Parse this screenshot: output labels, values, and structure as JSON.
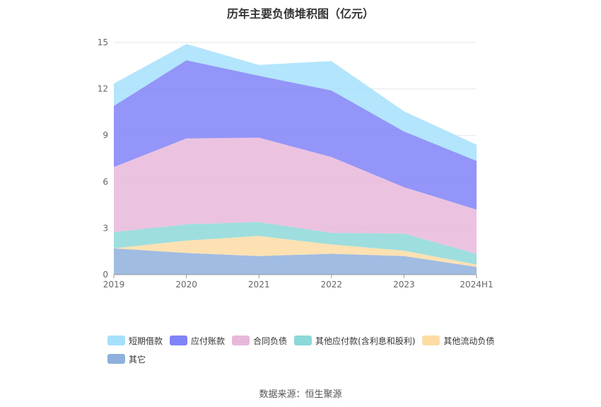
{
  "title": "历年主要负债堆积图（亿元）",
  "source": "数据来源：恒生聚源",
  "chart_data": {
    "type": "area",
    "stacked": true,
    "title": "历年主要负债堆积图（亿元）",
    "categories": [
      "2019",
      "2020",
      "2021",
      "2022",
      "2023",
      "2024H1"
    ],
    "ylim": [
      0,
      15
    ],
    "yticks": [
      "0",
      "3",
      "6",
      "9",
      "12",
      "15"
    ],
    "grid": true,
    "legend_position": "bottom",
    "series": [
      {
        "name": "短期借款",
        "color": "#a6e0fb",
        "values": [
          1.45,
          1.05,
          0.7,
          1.9,
          1.3,
          1.05
        ]
      },
      {
        "name": "应付账款",
        "color": "#8083f7",
        "values": [
          3.95,
          5.05,
          4.0,
          4.3,
          3.6,
          3.15
        ]
      },
      {
        "name": "合同负债",
        "color": "#e8b8da",
        "values": [
          4.2,
          5.55,
          5.45,
          4.9,
          3.0,
          2.85
        ]
      },
      {
        "name": "其他应付款(含利息和股利)",
        "color": "#8dd8d8",
        "values": [
          1.05,
          1.05,
          0.9,
          0.75,
          1.1,
          0.7
        ]
      },
      {
        "name": "其他流动负债",
        "color": "#fddca4",
        "values": [
          0.0,
          0.8,
          1.3,
          0.6,
          0.35,
          0.15
        ]
      },
      {
        "name": "其它",
        "color": "#8fb0dd",
        "values": [
          1.7,
          1.4,
          1.2,
          1.35,
          1.2,
          0.5
        ]
      }
    ]
  }
}
